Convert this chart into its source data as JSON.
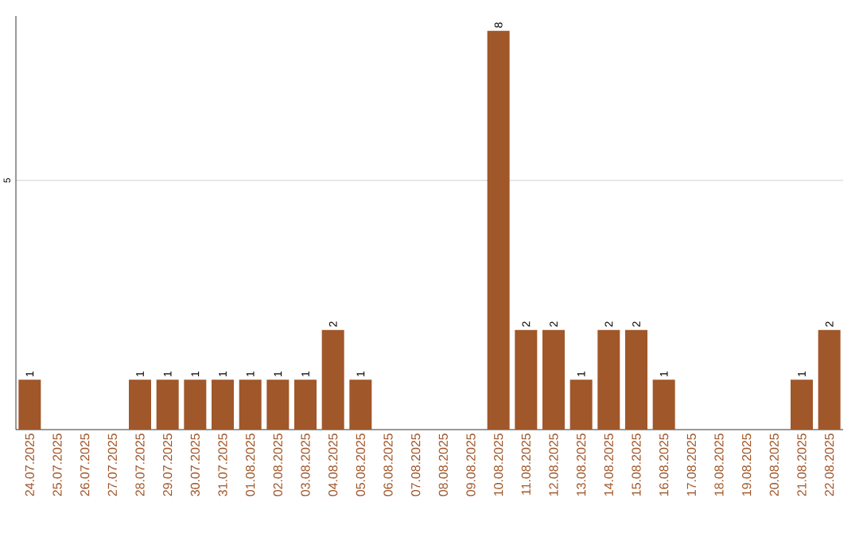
{
  "chart_data": {
    "type": "bar",
    "categories": [
      "24.07.2025",
      "25.07.2025",
      "26.07.2025",
      "27.07.2025",
      "28.07.2025",
      "29.07.2025",
      "30.07.2025",
      "31.07.2025",
      "01.08.2025",
      "02.08.2025",
      "03.08.2025",
      "04.08.2025",
      "05.08.2025",
      "06.08.2025",
      "07.08.2025",
      "08.08.2025",
      "09.08.2025",
      "10.08.2025",
      "11.08.2025",
      "12.08.2025",
      "13.08.2025",
      "14.08.2025",
      "15.08.2025",
      "16.08.2025",
      "17.08.2025",
      "18.08.2025",
      "19.08.2025",
      "20.08.2025",
      "21.08.2025",
      "22.08.2025"
    ],
    "values": [
      1,
      0,
      0,
      0,
      1,
      1,
      1,
      1,
      1,
      1,
      1,
      2,
      1,
      0,
      0,
      0,
      0,
      8,
      2,
      2,
      1,
      2,
      2,
      1,
      0,
      0,
      0,
      0,
      1,
      2
    ],
    "value_labels": [
      "1",
      null,
      null,
      null,
      "1",
      "1",
      "1",
      "1",
      "1",
      "1",
      "1",
      "2",
      "1",
      null,
      null,
      null,
      null,
      "8",
      "2",
      "2",
      "1",
      "2",
      "2",
      "1",
      null,
      null,
      null,
      null,
      "1",
      "2"
    ],
    "color": "#a0572a",
    "ylim": [
      0,
      8.3
    ],
    "yticks": [
      5
    ],
    "grid": "y"
  }
}
